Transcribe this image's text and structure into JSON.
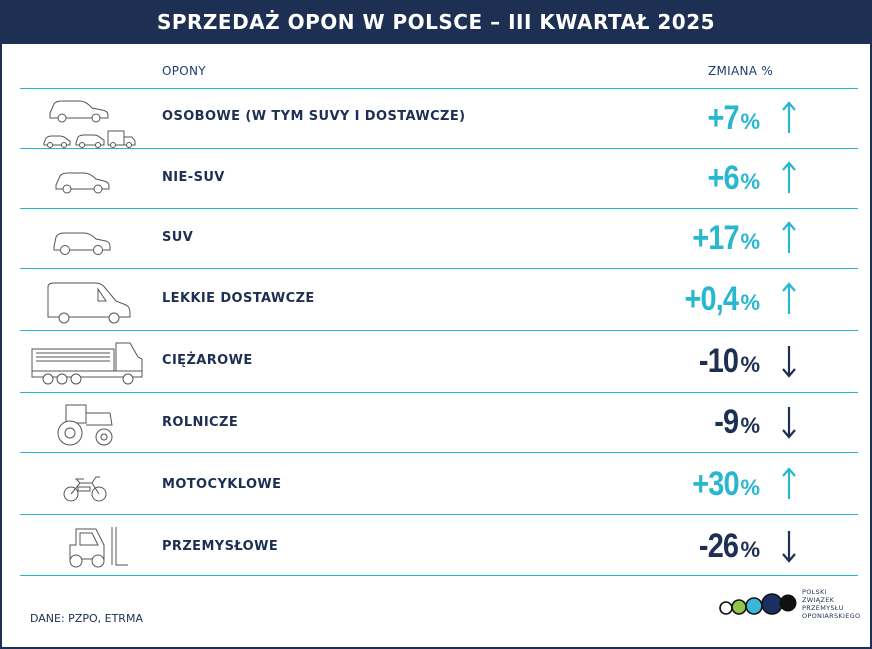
{
  "title": "SPRZEDAŻ OPON W POLSCE – III KWARTAŁ 2025",
  "columns": {
    "tires": "OPONY",
    "change": "ZMIANA %"
  },
  "colors": {
    "navy": "#1d2f52",
    "cyan": "#29b7cf"
  },
  "rows": [
    {
      "label": "OSOBOWE (W TYM SUVY I DOSTAWCZE)",
      "value": "+7",
      "unit": "%",
      "direction": "up",
      "icon": "passenger-cars-group-icon"
    },
    {
      "label": "NIE-SUV",
      "value": "+6",
      "unit": "%",
      "direction": "up",
      "icon": "hatchback-car-icon"
    },
    {
      "label": "SUV",
      "value": "+17",
      "unit": "%",
      "direction": "up",
      "icon": "suv-car-icon"
    },
    {
      "label": "LEKKIE DOSTAWCZE",
      "value": "+0,4",
      "unit": "%",
      "direction": "up",
      "icon": "van-icon"
    },
    {
      "label": "CIĘŻAROWE",
      "value": "-10",
      "unit": "%",
      "direction": "down",
      "icon": "truck-icon"
    },
    {
      "label": "ROLNICZE",
      "value": "-9",
      "unit": "%",
      "direction": "down",
      "icon": "tractor-icon"
    },
    {
      "label": "MOTOCYKLOWE",
      "value": "+30",
      "unit": "%",
      "direction": "up",
      "icon": "motorcycle-icon"
    },
    {
      "label": "PRZEMYSŁOWE",
      "value": "-26",
      "unit": "%",
      "direction": "down",
      "icon": "forklift-icon"
    }
  ],
  "source": "DANE: PZPO, ETRMA",
  "logo": {
    "lines": [
      "POLSKI",
      "ZWIĄZEK",
      "PRZEMYSŁU",
      "OPONIARSKIEGO"
    ]
  }
}
